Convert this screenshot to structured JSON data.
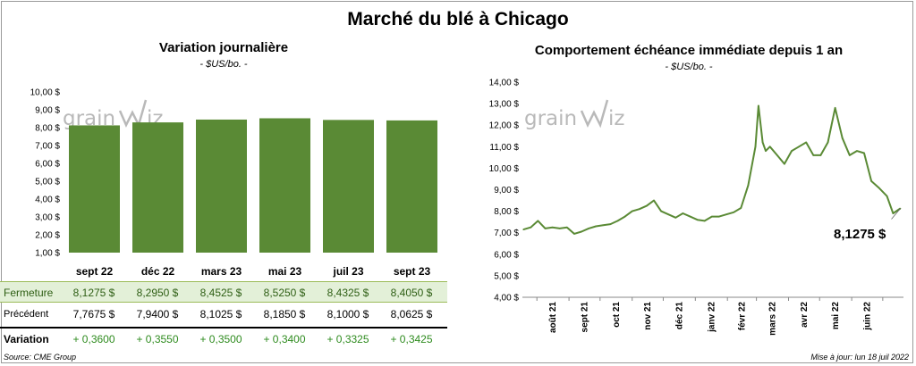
{
  "title": "Marché du blé à Chicago",
  "source": "Source: CME Group",
  "updated": "Mise à jour: lun 18 juil 2022",
  "logo": {
    "text_left": "grain",
    "text_right": "iz"
  },
  "colors": {
    "bar": "#5a8a35",
    "line": "#5a8a35",
    "fermeture_bg": "#e3f0d8",
    "variation_text": "#2e8b1e"
  },
  "chart_data": [
    {
      "type": "bar",
      "title": "Variation journalière",
      "subtitle": "- $US/bo. -",
      "categories": [
        "sept 22",
        "déc 22",
        "mars 23",
        "mai 23",
        "juil 23",
        "sept 23"
      ],
      "values": [
        8.1275,
        8.295,
        8.4525,
        8.525,
        8.4325,
        8.405
      ],
      "ylim": [
        1,
        10
      ],
      "yticks": [
        "1,00 $",
        "2,00 $",
        "3,00 $",
        "4,00 $",
        "5,00 $",
        "6,00 $",
        "7,00 $",
        "8,00 $",
        "9,00 $",
        "10,00 $"
      ],
      "grid": false,
      "table": {
        "rows": [
          {
            "label": "Fermeture",
            "values": [
              "8,1275  $",
              "8,2950  $",
              "8,4525  $",
              "8,5250  $",
              "8,4325  $",
              "8,4050  $"
            ]
          },
          {
            "label": "Précédent",
            "values": [
              "7,7675  $",
              "7,9400  $",
              "8,1025  $",
              "8,1850  $",
              "8,1000  $",
              "8,0625  $"
            ]
          },
          {
            "label": "Variation",
            "values": [
              "+ 0,3600",
              "+ 0,3550",
              "+ 0,3500",
              "+ 0,3400",
              "+ 0,3325",
              "+ 0,3425"
            ]
          }
        ]
      }
    },
    {
      "type": "line",
      "title": "Comportement  échéance immédiate depuis 1 an",
      "subtitle": "- $US/bo. -",
      "ylim": [
        4,
        14
      ],
      "yticks": [
        "4,00 $",
        "5,00 $",
        "6,00 $",
        "7,00 $",
        "8,00 $",
        "9,00 $",
        "10,00 $",
        "11,00 $",
        "12,00 $",
        "13,00 $",
        "14,00 $"
      ],
      "xticks": [
        "août 21",
        "sept 21",
        "oct 21",
        "nov 21",
        "déc 21",
        "janv 22",
        "févr 22",
        "mars 22",
        "avr 22",
        "mai 22",
        "juin 22"
      ],
      "x": [
        "2021-07-19",
        "2021-07-26",
        "2021-08-02",
        "2021-08-09",
        "2021-08-16",
        "2021-08-23",
        "2021-08-30",
        "2021-09-06",
        "2021-09-13",
        "2021-09-20",
        "2021-09-27",
        "2021-10-04",
        "2021-10-11",
        "2021-10-18",
        "2021-10-25",
        "2021-11-01",
        "2021-11-08",
        "2021-11-15",
        "2021-11-22",
        "2021-11-29",
        "2021-12-06",
        "2021-12-13",
        "2021-12-20",
        "2021-12-27",
        "2022-01-03",
        "2022-01-10",
        "2022-01-17",
        "2022-01-24",
        "2022-01-31",
        "2022-02-07",
        "2022-02-14",
        "2022-02-21",
        "2022-02-28",
        "2022-03-03",
        "2022-03-07",
        "2022-03-10",
        "2022-03-14",
        "2022-03-21",
        "2022-03-28",
        "2022-04-04",
        "2022-04-11",
        "2022-04-18",
        "2022-04-25",
        "2022-05-02",
        "2022-05-09",
        "2022-05-16",
        "2022-05-23",
        "2022-05-30",
        "2022-06-06",
        "2022-06-13",
        "2022-06-20",
        "2022-06-27",
        "2022-07-05",
        "2022-07-11",
        "2022-07-18"
      ],
      "values": [
        7.15,
        7.25,
        7.55,
        7.2,
        7.25,
        7.2,
        7.25,
        6.95,
        7.05,
        7.2,
        7.3,
        7.35,
        7.4,
        7.55,
        7.75,
        8.0,
        8.1,
        8.25,
        8.5,
        8.0,
        7.85,
        7.7,
        7.9,
        7.75,
        7.6,
        7.55,
        7.75,
        7.75,
        7.85,
        7.95,
        8.15,
        9.2,
        11.0,
        12.9,
        11.2,
        10.8,
        11.0,
        10.6,
        10.2,
        10.8,
        11.0,
        11.2,
        10.6,
        10.6,
        11.2,
        12.8,
        11.4,
        10.6,
        10.8,
        10.7,
        9.4,
        9.1,
        8.7,
        7.9,
        8.1275
      ],
      "last_value_label": "8,1275 $",
      "grid": false
    }
  ]
}
